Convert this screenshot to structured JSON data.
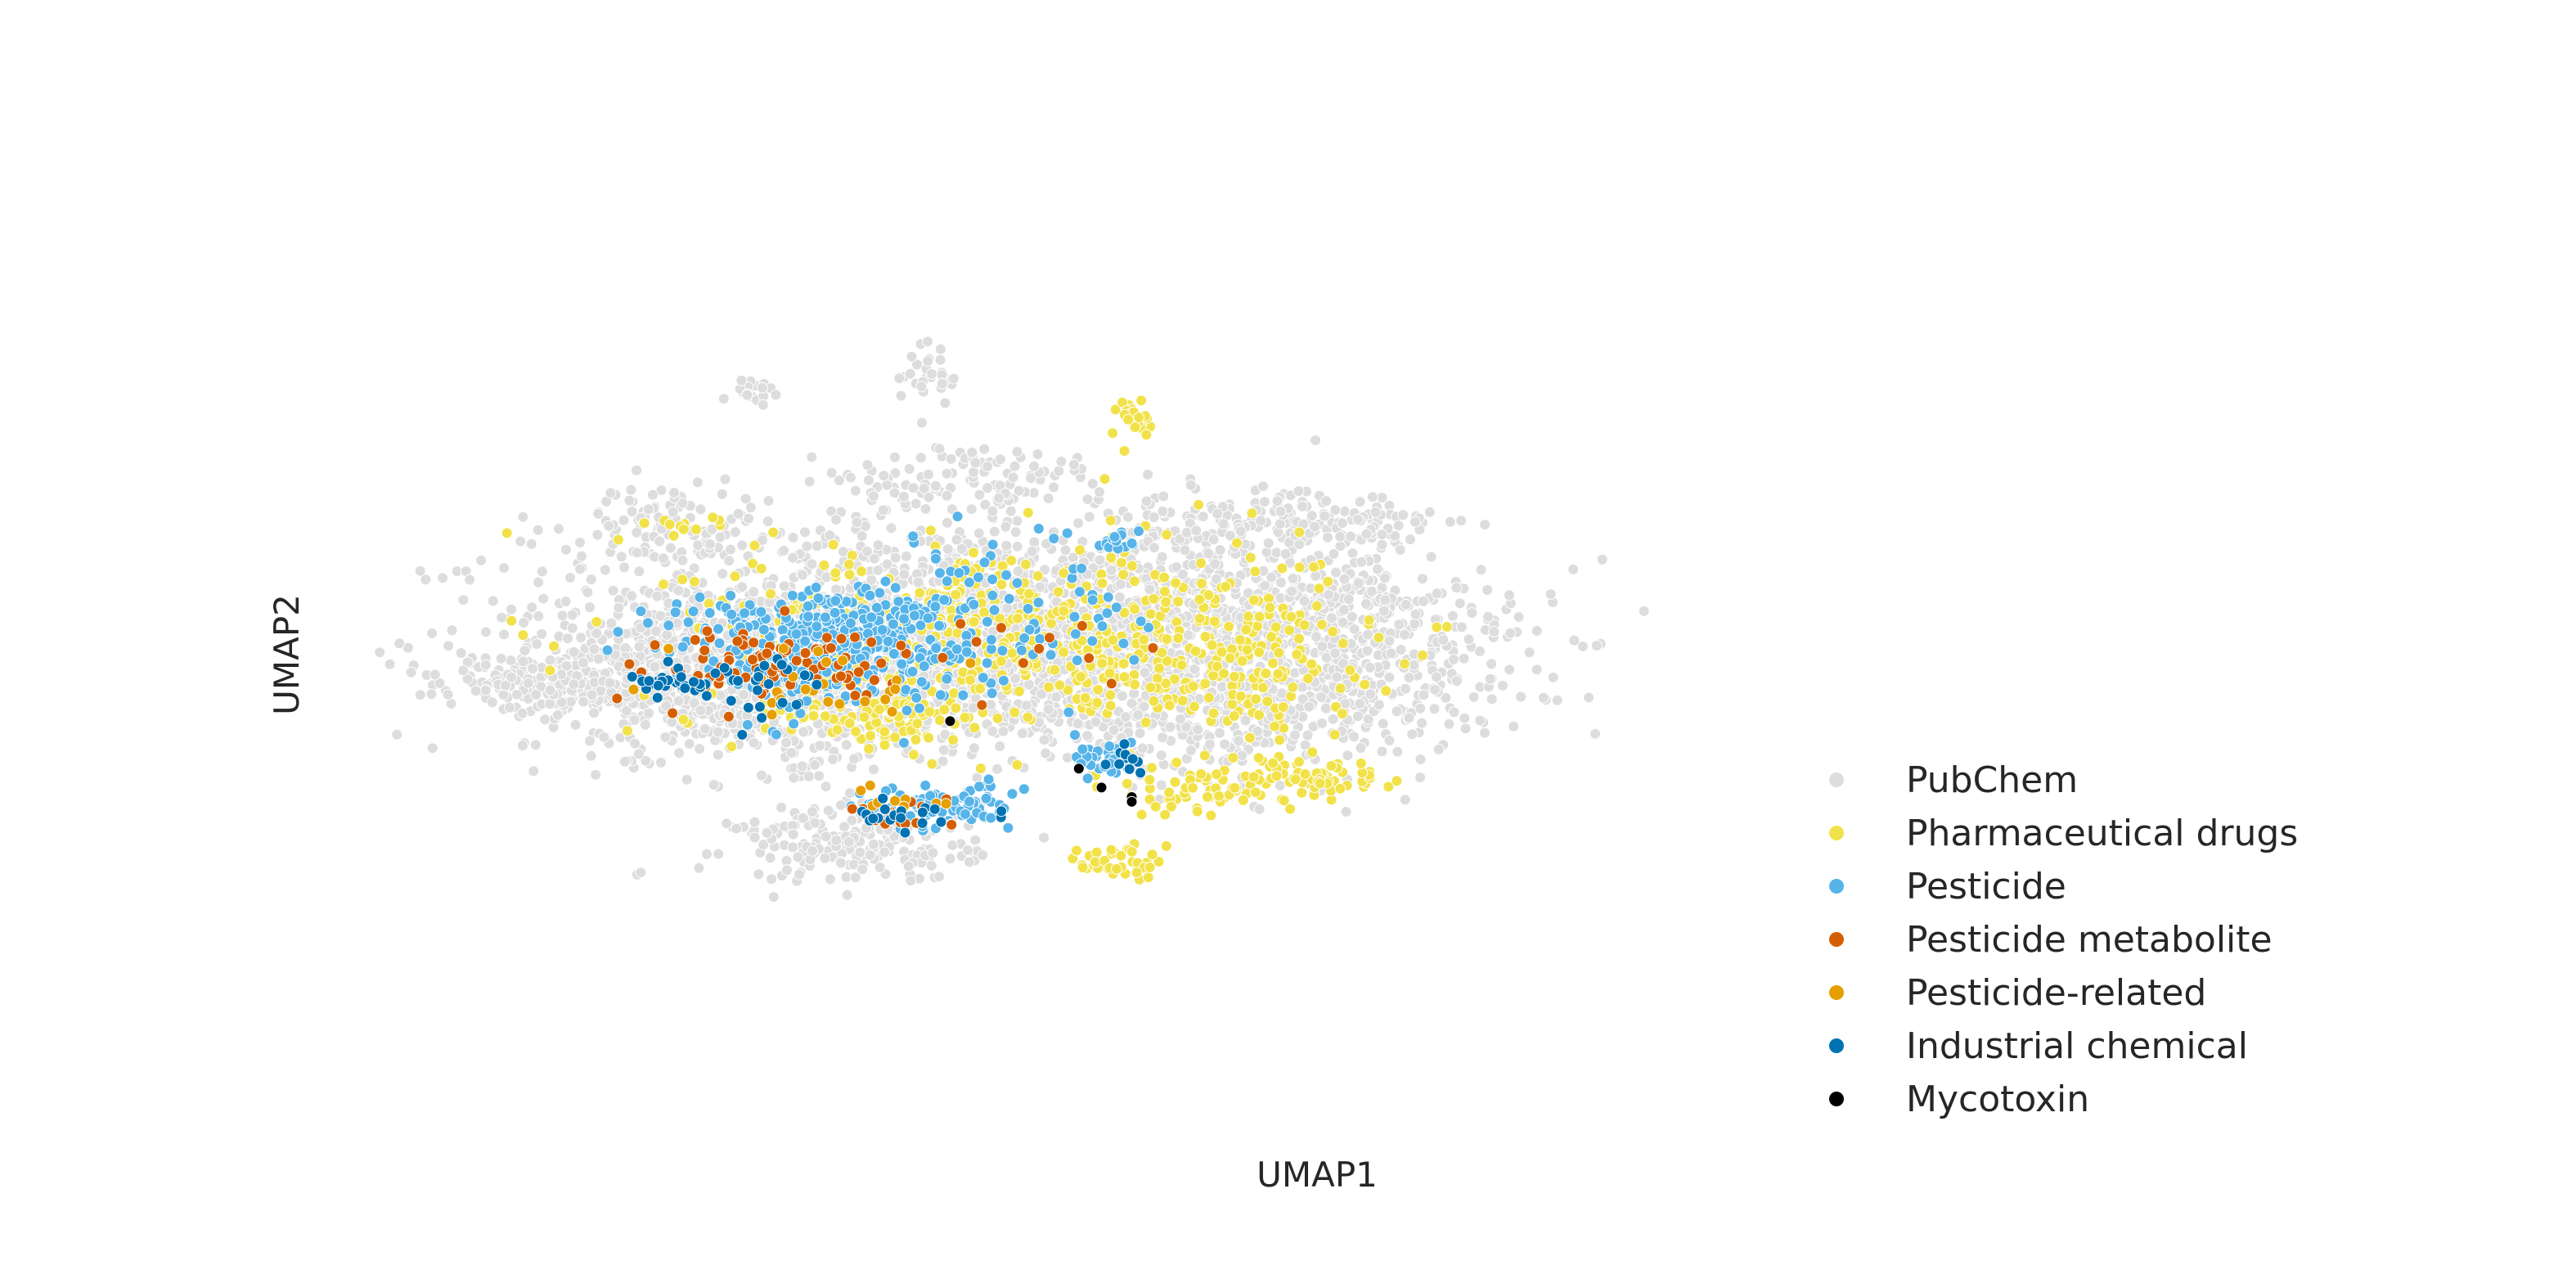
{
  "chart_data": {
    "type": "scatter",
    "title": "",
    "xlabel": "UMAP1",
    "ylabel": "UMAP2",
    "xlim": [
      0,
      100
    ],
    "ylim": [
      0,
      100
    ],
    "grid": false,
    "legend_position": "bottom-right",
    "series": [
      {
        "name": "PubChem",
        "color": "#dddddd",
        "clusters": [
          {
            "cx": 40,
            "cy": 52,
            "sx": 14,
            "sy": 6,
            "n": 2200
          },
          {
            "cx": 26,
            "cy": 47,
            "sx": 7,
            "sy": 4,
            "n": 600
          },
          {
            "cx": 14,
            "cy": 47,
            "sx": 4,
            "sy": 1.2,
            "n": 250
          },
          {
            "cx": 58,
            "cy": 44,
            "sx": 7,
            "sy": 3,
            "n": 300
          },
          {
            "cx": 66,
            "cy": 50,
            "sx": 6,
            "sy": 4,
            "n": 250
          },
          {
            "cx": 33,
            "cy": 30,
            "sx": 4,
            "sy": 2,
            "n": 200
          },
          {
            "cx": 58,
            "cy": 63,
            "sx": 5,
            "sy": 2,
            "n": 150
          },
          {
            "cx": 20,
            "cy": 64,
            "sx": 3,
            "sy": 2,
            "n": 80
          },
          {
            "cx": 66,
            "cy": 64,
            "sx": 3,
            "sy": 1.5,
            "n": 60
          },
          {
            "cx": 40,
            "cy": 68,
            "sx": 5,
            "sy": 2,
            "n": 120
          },
          {
            "cx": 62,
            "cy": 56,
            "sx": 6,
            "sy": 1.5,
            "n": 150
          },
          {
            "cx": 38,
            "cy": 80,
            "sx": 1,
            "sy": 2,
            "n": 30
          },
          {
            "cx": 26,
            "cy": 78,
            "sx": 1,
            "sy": 0.6,
            "n": 20
          }
        ]
      },
      {
        "name": "Pharmaceutical drugs",
        "color": "#f2e24a",
        "clusters": [
          {
            "cx": 42,
            "cy": 52,
            "sx": 10,
            "sy": 5,
            "n": 500
          },
          {
            "cx": 35,
            "cy": 43,
            "sx": 3,
            "sy": 1.5,
            "n": 80
          },
          {
            "cx": 63,
            "cy": 37,
            "sx": 2.5,
            "sy": 1.2,
            "n": 60
          },
          {
            "cx": 56,
            "cy": 36,
            "sx": 3,
            "sy": 1.5,
            "n": 60
          },
          {
            "cx": 50,
            "cy": 28,
            "sx": 1.2,
            "sy": 1,
            "n": 40
          },
          {
            "cx": 51,
            "cy": 75,
            "sx": 0.7,
            "sy": 1,
            "n": 25
          },
          {
            "cx": 21,
            "cy": 64,
            "sx": 1,
            "sy": 0.6,
            "n": 10
          },
          {
            "cx": 57,
            "cy": 50,
            "sx": 5,
            "sy": 4,
            "n": 150
          }
        ]
      },
      {
        "name": "Pesticide",
        "color": "#56b4e9",
        "clusters": [
          {
            "cx": 31,
            "cy": 51,
            "sx": 5,
            "sy": 3,
            "n": 450
          },
          {
            "cx": 38,
            "cy": 34,
            "sx": 2.5,
            "sy": 1.2,
            "n": 80
          },
          {
            "cx": 49,
            "cy": 39,
            "sx": 1.2,
            "sy": 1,
            "n": 30
          },
          {
            "cx": 50,
            "cy": 62,
            "sx": 0.8,
            "sy": 0.6,
            "n": 15
          },
          {
            "cx": 44,
            "cy": 55,
            "sx": 5,
            "sy": 5,
            "n": 80
          }
        ]
      },
      {
        "name": "Pesticide metabolite",
        "color": "#d55e00",
        "clusters": [
          {
            "cx": 28,
            "cy": 49,
            "sx": 5,
            "sy": 2,
            "n": 90
          },
          {
            "cx": 36,
            "cy": 33,
            "sx": 2,
            "sy": 1,
            "n": 15
          },
          {
            "cx": 45,
            "cy": 50,
            "sx": 4,
            "sy": 3,
            "n": 10
          }
        ]
      },
      {
        "name": "Pesticide-related",
        "color": "#e69f00",
        "clusters": [
          {
            "cx": 30,
            "cy": 47,
            "sx": 4,
            "sy": 2,
            "n": 25
          },
          {
            "cx": 37,
            "cy": 34,
            "sx": 2,
            "sy": 1,
            "n": 10
          }
        ]
      },
      {
        "name": "Industrial chemical",
        "color": "#0072b2",
        "clusters": [
          {
            "cx": 21,
            "cy": 47,
            "sx": 1.5,
            "sy": 0.6,
            "n": 30
          },
          {
            "cx": 27,
            "cy": 46,
            "sx": 2,
            "sy": 2,
            "n": 25
          },
          {
            "cx": 36,
            "cy": 33,
            "sx": 2,
            "sy": 1,
            "n": 20
          },
          {
            "cx": 50,
            "cy": 39,
            "sx": 0.8,
            "sy": 0.6,
            "n": 10
          }
        ]
      },
      {
        "name": "Mycotoxin",
        "color": "#000000",
        "points": [
          [
            39,
            43
          ],
          [
            47.5,
            38
          ],
          [
            49,
            36
          ],
          [
            51,
            35
          ],
          [
            51,
            34.5
          ]
        ]
      }
    ]
  }
}
